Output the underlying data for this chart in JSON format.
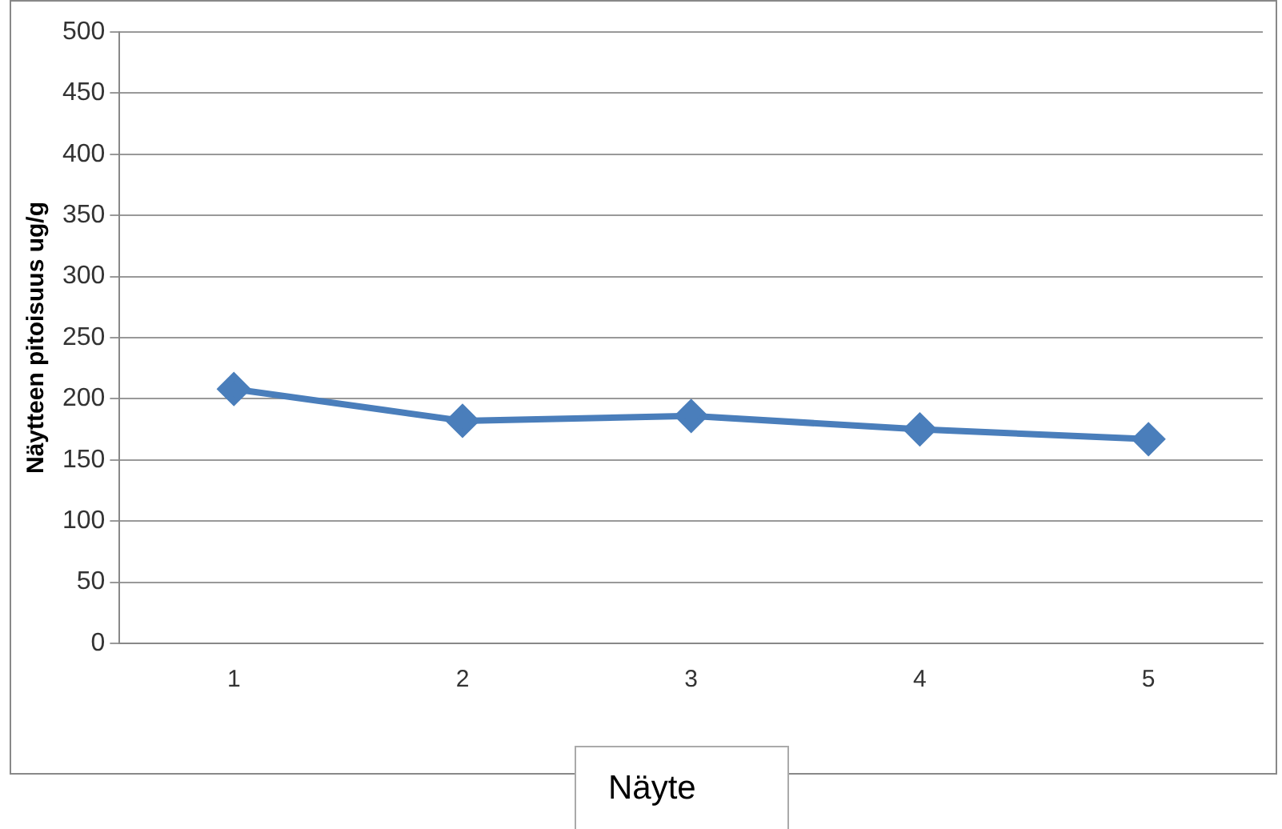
{
  "chart_data": {
    "type": "line",
    "xlabel": "Näyte",
    "ylabel": "Näytteen pitoisuus ug/g",
    "categories": [
      "1",
      "2",
      "3",
      "4",
      "5"
    ],
    "series": [
      {
        "color": "#4a7ebb",
        "values": [
          208,
          182,
          186,
          175,
          167
        ]
      }
    ],
    "ylim": [
      0,
      500
    ],
    "yticks": [
      0,
      50,
      100,
      150,
      200,
      250,
      300,
      350,
      400,
      450,
      500
    ],
    "grid": "y",
    "legend": false,
    "marker": "diamond",
    "line_style": "solid"
  }
}
